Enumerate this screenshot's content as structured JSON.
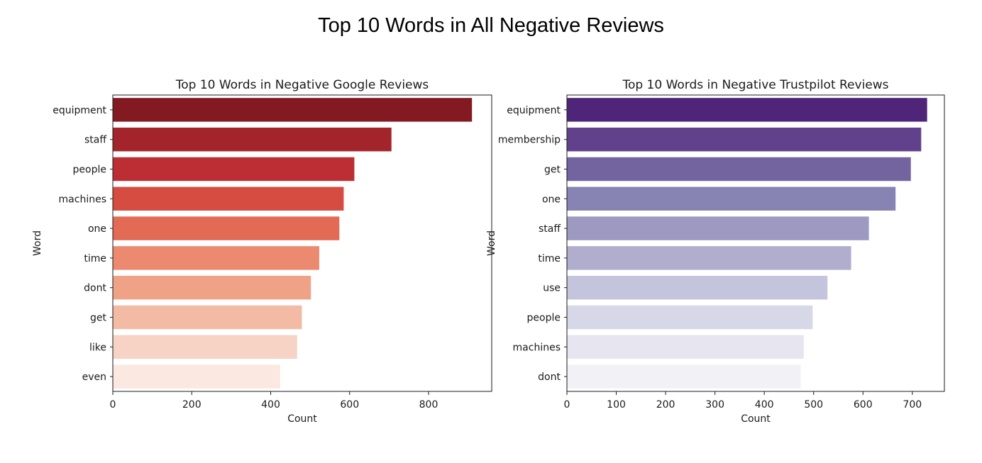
{
  "figure": {
    "suptitle": "Top 10 Words in All Negative Reviews"
  },
  "chart_data": [
    {
      "type": "bar",
      "orientation": "horizontal",
      "title": "Top 10 Words in Negative Google Reviews",
      "xlabel": "Count",
      "ylabel": "Word",
      "categories": [
        "equipment",
        "staff",
        "people",
        "machines",
        "one",
        "time",
        "dont",
        "get",
        "like",
        "even"
      ],
      "values": [
        910,
        706,
        612,
        585,
        574,
        523,
        502,
        479,
        467,
        424
      ],
      "xlim": [
        0,
        960
      ],
      "xticks": [
        0,
        200,
        400,
        600,
        800
      ],
      "grid": false,
      "colors": [
        "#831a21",
        "#a3252b",
        "#bc2e33",
        "#d74c41",
        "#e36b55",
        "#ec8a6f",
        "#f0a287",
        "#f4bba4",
        "#f6d3c4",
        "#fbe8e0"
      ]
    },
    {
      "type": "bar",
      "orientation": "horizontal",
      "title": "Top 10 Words in Negative Trustpilot Reviews",
      "xlabel": "Count",
      "ylabel": "Word",
      "categories": [
        "equipment",
        "membership",
        "get",
        "one",
        "staff",
        "time",
        "use",
        "people",
        "machines",
        "dont"
      ],
      "values": [
        730,
        718,
        697,
        666,
        612,
        576,
        528,
        498,
        480,
        474
      ],
      "xlim": [
        0,
        765
      ],
      "xticks": [
        0,
        100,
        200,
        300,
        400,
        500,
        600,
        700
      ],
      "grid": false,
      "colors": [
        "#4f2579",
        "#61418c",
        "#73639f",
        "#8783b3",
        "#9d99c1",
        "#b0aecc",
        "#c4c4dc",
        "#d7d8e7",
        "#e7e6f0",
        "#f2f1f6"
      ]
    }
  ]
}
